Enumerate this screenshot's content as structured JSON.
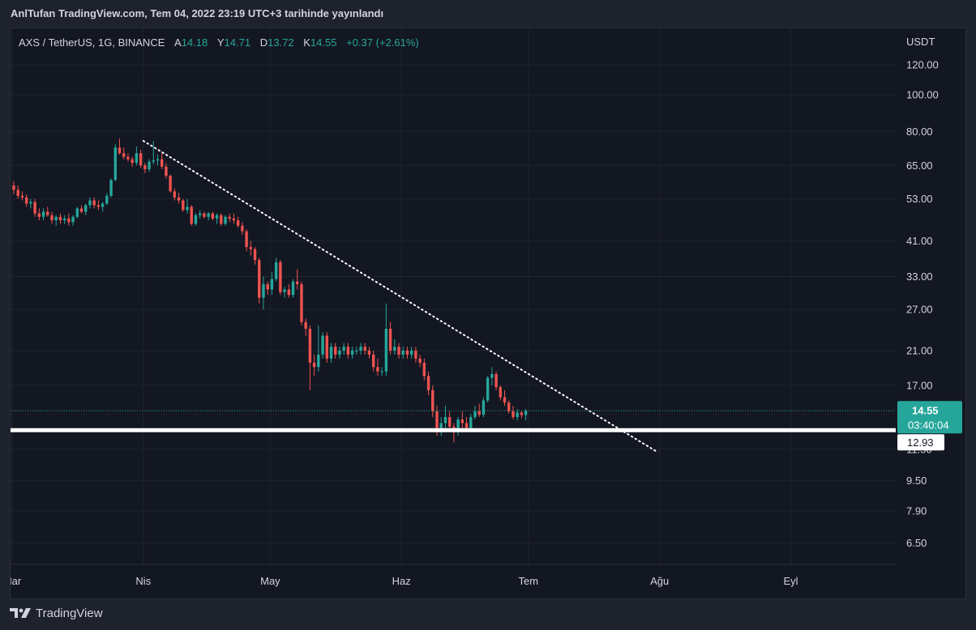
{
  "header": {
    "published_text": "AnlTufan TradingView.com, Tem 04, 2022 23:19 UTC+3 tarihinde yayınlandı"
  },
  "legend": {
    "symbol": "AXS / TetherUS, 1G, BINANCE",
    "open_label": "A",
    "open": "14.18",
    "high_label": "Y",
    "high": "14.71",
    "low_label": "D",
    "low": "13.72",
    "close_label": "K",
    "close": "14.55",
    "change": "+0.37 (+2.61%)"
  },
  "footer": {
    "brand": "TradingView"
  },
  "chart_data": {
    "type": "candlestick",
    "currency_label": "USDT",
    "y_scale": "log",
    "ylim": [
      5.7,
      150
    ],
    "y_ticks": [
      "120.00",
      "100.00",
      "80.00",
      "65.00",
      "53.00",
      "41.00",
      "33.00",
      "27.00",
      "21.00",
      "17.00",
      "11.50",
      "9.50",
      "7.90",
      "6.50"
    ],
    "x_ticks": [
      "Mar",
      "Nis",
      "May",
      "Haz",
      "Tem",
      "Ağu",
      "Eyl"
    ],
    "last_price": "14.55",
    "countdown": "03:40:04",
    "support_level": "12.93",
    "colors": {
      "up": "#26a69a",
      "down": "#ef5350",
      "support_line": "#ffffff",
      "trendline": "#ffffff",
      "background": "#131722"
    },
    "trendline": {
      "style": "dotted",
      "from": {
        "date": "2022-04-01",
        "price": 75.5
      },
      "to": {
        "date": "2022-07-31",
        "price": 11.4
      }
    },
    "start_date": "2022-03-01",
    "candles": [
      [
        57.5,
        59.0,
        54.5,
        56.0
      ],
      [
        56.0,
        57.5,
        53.0,
        54.0
      ],
      [
        54.0,
        55.5,
        52.5,
        53.5
      ],
      [
        53.5,
        54.5,
        50.5,
        51.5
      ],
      [
        51.5,
        53.0,
        50.0,
        52.0
      ],
      [
        52.0,
        53.0,
        47.5,
        48.5
      ],
      [
        48.5,
        50.0,
        46.5,
        47.5
      ],
      [
        47.5,
        50.0,
        46.5,
        49.0
      ],
      [
        49.0,
        50.5,
        47.5,
        48.0
      ],
      [
        48.0,
        49.0,
        45.5,
        46.5
      ],
      [
        46.5,
        48.0,
        45.0,
        47.5
      ],
      [
        47.5,
        48.5,
        45.5,
        46.5
      ],
      [
        46.5,
        48.0,
        45.5,
        47.0
      ],
      [
        47.0,
        48.5,
        45.0,
        46.0
      ],
      [
        46.0,
        48.0,
        45.0,
        47.5
      ],
      [
        47.5,
        50.5,
        47.0,
        50.0
      ],
      [
        50.0,
        51.0,
        48.5,
        49.0
      ],
      [
        49.0,
        51.5,
        48.0,
        51.0
      ],
      [
        51.0,
        53.5,
        50.0,
        52.5
      ],
      [
        52.5,
        53.5,
        50.0,
        51.0
      ],
      [
        51.0,
        52.5,
        49.5,
        50.5
      ],
      [
        50.5,
        52.0,
        49.0,
        51.5
      ],
      [
        51.5,
        55.0,
        51.0,
        54.0
      ],
      [
        54.0,
        60.0,
        53.5,
        59.5
      ],
      [
        59.5,
        74.0,
        59.0,
        72.5
      ],
      [
        72.5,
        76.5,
        69.5,
        70.0
      ],
      [
        70.0,
        72.5,
        67.5,
        68.5
      ],
      [
        68.5,
        70.0,
        66.5,
        67.5
      ],
      [
        67.5,
        68.5,
        64.5,
        66.0
      ],
      [
        66.0,
        73.0,
        65.0,
        70.0
      ],
      [
        70.0,
        71.5,
        64.0,
        65.0
      ],
      [
        65.0,
        66.0,
        62.0,
        63.5
      ],
      [
        63.5,
        67.5,
        62.5,
        66.5
      ],
      [
        66.5,
        75.5,
        65.5,
        67.0
      ],
      [
        67.0,
        69.5,
        65.0,
        67.5
      ],
      [
        67.5,
        70.0,
        63.5,
        64.5
      ],
      [
        64.5,
        66.0,
        60.0,
        61.0
      ],
      [
        61.0,
        61.5,
        55.0,
        55.5
      ],
      [
        55.5,
        56.5,
        52.5,
        53.5
      ],
      [
        53.5,
        55.0,
        51.5,
        52.5
      ],
      [
        52.5,
        53.0,
        49.0,
        49.5
      ],
      [
        49.5,
        53.0,
        48.5,
        50.5
      ],
      [
        50.5,
        51.0,
        45.0,
        45.5
      ],
      [
        45.5,
        48.5,
        45.0,
        48.0
      ],
      [
        48.0,
        49.5,
        47.0,
        48.5
      ],
      [
        48.5,
        49.0,
        47.0,
        47.5
      ],
      [
        47.5,
        49.0,
        46.5,
        48.5
      ],
      [
        48.5,
        49.0,
        46.5,
        47.0
      ],
      [
        47.0,
        48.5,
        45.5,
        48.0
      ],
      [
        48.0,
        48.5,
        45.0,
        45.5
      ],
      [
        45.5,
        48.0,
        45.0,
        47.5
      ],
      [
        47.5,
        48.5,
        46.0,
        47.0
      ],
      [
        47.0,
        48.5,
        45.5,
        46.5
      ],
      [
        46.5,
        47.5,
        44.5,
        45.0
      ],
      [
        45.0,
        46.0,
        42.5,
        43.5
      ],
      [
        43.5,
        44.0,
        38.5,
        39.5
      ],
      [
        39.5,
        41.0,
        37.5,
        39.0
      ],
      [
        39.0,
        39.5,
        35.5,
        36.5
      ],
      [
        36.5,
        37.0,
        28.0,
        29.0
      ],
      [
        29.0,
        33.0,
        27.0,
        31.5
      ],
      [
        31.5,
        32.0,
        29.5,
        30.5
      ],
      [
        30.5,
        34.0,
        29.5,
        32.5
      ],
      [
        32.5,
        37.0,
        32.0,
        36.0
      ],
      [
        36.0,
        36.5,
        29.5,
        30.0
      ],
      [
        30.0,
        31.0,
        29.0,
        30.5
      ],
      [
        30.5,
        31.5,
        29.0,
        29.5
      ],
      [
        29.5,
        32.5,
        29.0,
        32.0
      ],
      [
        32.0,
        34.5,
        30.5,
        31.5
      ],
      [
        31.5,
        32.0,
        24.5,
        25.0
      ],
      [
        25.0,
        25.5,
        23.0,
        24.0
      ],
      [
        24.0,
        24.5,
        16.5,
        19.5
      ],
      [
        19.5,
        20.5,
        18.0,
        19.0
      ],
      [
        19.0,
        24.5,
        18.5,
        20.5
      ],
      [
        20.5,
        23.5,
        20.0,
        23.0
      ],
      [
        23.0,
        23.5,
        19.5,
        20.0
      ],
      [
        20.0,
        22.0,
        19.5,
        21.5
      ],
      [
        21.5,
        22.0,
        20.0,
        20.5
      ],
      [
        20.5,
        21.5,
        20.0,
        21.0
      ],
      [
        21.0,
        22.0,
        20.5,
        21.5
      ],
      [
        21.5,
        22.0,
        20.0,
        20.5
      ],
      [
        20.5,
        21.5,
        20.0,
        21.0
      ],
      [
        21.0,
        21.5,
        20.5,
        21.0
      ],
      [
        21.0,
        22.0,
        20.5,
        21.5
      ],
      [
        21.5,
        22.0,
        20.5,
        21.0
      ],
      [
        21.0,
        21.5,
        20.0,
        20.5
      ],
      [
        20.5,
        21.0,
        18.5,
        19.0
      ],
      [
        19.0,
        20.0,
        18.0,
        18.5
      ],
      [
        18.5,
        19.0,
        18.0,
        18.5
      ],
      [
        18.5,
        28.0,
        18.0,
        24.0
      ],
      [
        24.0,
        25.0,
        20.5,
        21.0
      ],
      [
        21.0,
        22.5,
        20.5,
        21.5
      ],
      [
        21.5,
        22.0,
        20.0,
        20.5
      ],
      [
        20.5,
        21.5,
        20.0,
        21.0
      ],
      [
        21.0,
        21.5,
        20.0,
        20.5
      ],
      [
        20.5,
        21.5,
        20.0,
        21.0
      ],
      [
        21.0,
        21.5,
        19.5,
        20.0
      ],
      [
        20.0,
        20.5,
        19.0,
        19.5
      ],
      [
        19.5,
        20.0,
        17.5,
        18.0
      ],
      [
        18.0,
        18.5,
        16.0,
        16.5
      ],
      [
        16.5,
        17.0,
        14.0,
        14.5
      ],
      [
        14.5,
        15.0,
        12.5,
        13.0
      ],
      [
        13.0,
        14.0,
        12.5,
        13.5
      ],
      [
        13.5,
        15.0,
        13.0,
        14.0
      ],
      [
        14.0,
        14.5,
        12.8,
        13.2
      ],
      [
        13.2,
        13.5,
        12.0,
        12.8
      ],
      [
        12.8,
        14.0,
        12.5,
        13.8
      ],
      [
        13.8,
        14.5,
        13.0,
        13.5
      ],
      [
        13.5,
        14.0,
        12.9,
        13.1
      ],
      [
        13.1,
        14.3,
        13.0,
        14.0
      ],
      [
        14.0,
        15.0,
        13.8,
        14.5
      ],
      [
        14.5,
        15.2,
        14.0,
        14.2
      ],
      [
        14.2,
        15.8,
        14.0,
        15.5
      ],
      [
        15.5,
        18.0,
        15.3,
        17.8
      ],
      [
        17.8,
        19.0,
        17.0,
        18.2
      ],
      [
        18.2,
        18.5,
        16.5,
        16.8
      ],
      [
        16.8,
        17.0,
        15.5,
        15.8
      ],
      [
        15.8,
        16.5,
        15.0,
        15.3
      ],
      [
        15.3,
        15.5,
        14.3,
        14.5
      ],
      [
        14.5,
        15.0,
        13.8,
        14.0
      ],
      [
        14.0,
        14.7,
        13.7,
        14.4
      ],
      [
        14.4,
        14.6,
        13.9,
        14.18
      ],
      [
        14.18,
        14.71,
        13.72,
        14.55
      ]
    ]
  }
}
